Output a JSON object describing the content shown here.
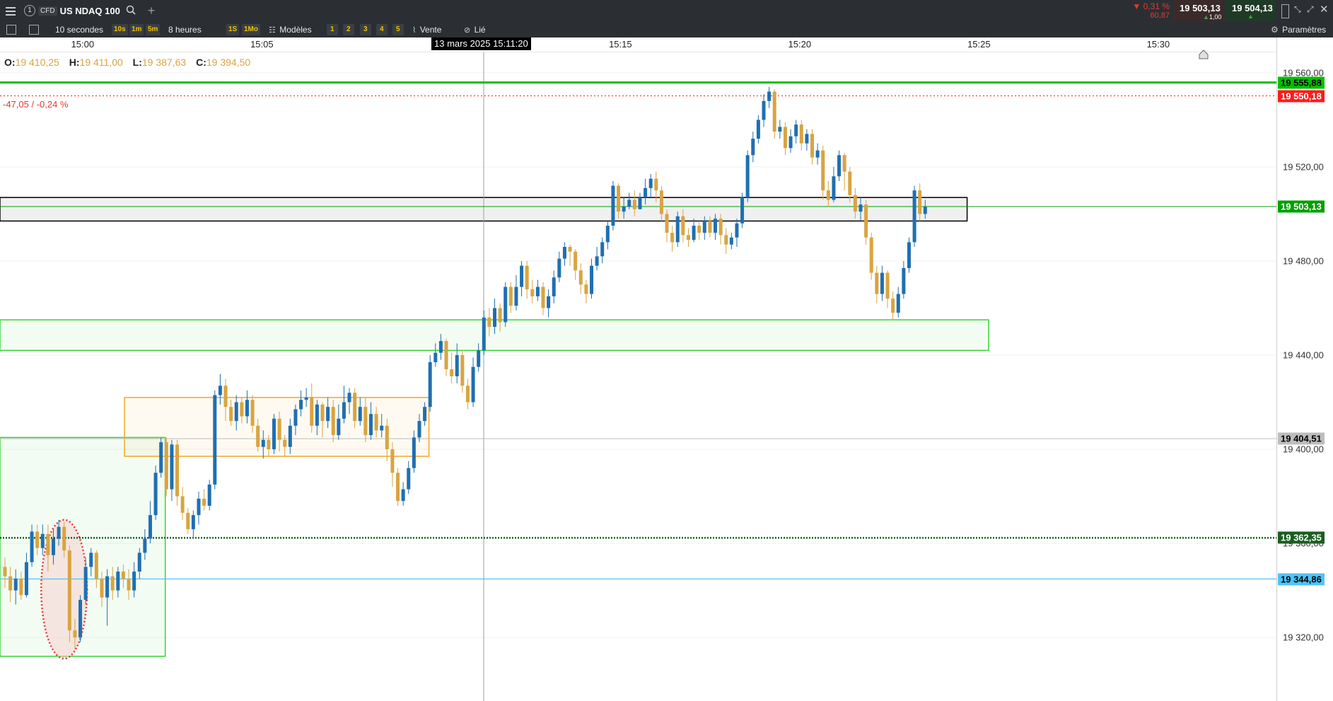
{
  "topbar": {
    "menu_icon": "menu-icon",
    "instrument_badge": "1",
    "instrument_type": "CFD",
    "instrument_name": "US NDAQ 100",
    "search_icon": "search-icon",
    "add_icon": "plus-icon",
    "change_pct": "▼ 0,31 %",
    "change_abs": "60,87",
    "bid": "19 503,13",
    "spread": "1,00",
    "ask": "19 504,13",
    "colors": {
      "down": "#e53935",
      "up": "#43a047",
      "bg": "#2b2f33"
    }
  },
  "toolbar": {
    "interval": "10 secondes",
    "quick_intervals": [
      "10s",
      "1m",
      "5m"
    ],
    "range": "8 heures",
    "quick_ranges": [
      "1S",
      "1Mo"
    ],
    "templates_label": "Modèles",
    "slots": [
      "1",
      "2",
      "3",
      "4",
      "5"
    ],
    "sell_label": "Vente",
    "linked_label": "Lié",
    "settings_label": "Paramètres"
  },
  "ohlc": {
    "o_label": "O:",
    "o": "19 410,25",
    "h_label": "H:",
    "h": "19 411,00",
    "l_label": "L:",
    "l": "19 387,63",
    "c_label": "C:",
    "c": "19 394,50"
  },
  "cursor_time": "13 mars 2025 15:11:20",
  "change_annotation": "-47,05 / -0,24 %",
  "chart_data": {
    "type": "candlestick",
    "x_ticks": [
      "15:00",
      "15:05",
      "15:15",
      "15:20",
      "15:25",
      "15:30"
    ],
    "y_ticks": [
      "19 560,00",
      "19 520,00",
      "19 480,00",
      "19 440,00",
      "19 400,00",
      "19 360,00",
      "19 320,00"
    ],
    "ylim": [
      19293.0,
      19575.0
    ],
    "price_labels": [
      {
        "value": "19 555,88",
        "color": "#00c000"
      },
      {
        "value": "19 550,18",
        "color": "#ff1a1a"
      },
      {
        "value": "19 503,13",
        "color": "#00a000"
      },
      {
        "value": "19 404,51",
        "color": "#bdbdbd"
      },
      {
        "value": "19 362,35",
        "color": "#1b5e20"
      },
      {
        "value": "19 344,86",
        "color": "#4fc3f7"
      }
    ],
    "candles": [
      [
        19350,
        19346,
        19354,
        19341
      ],
      [
        19346,
        19340,
        19350,
        19335
      ],
      [
        19340,
        19345,
        19349,
        19334
      ],
      [
        19345,
        19338,
        19348,
        19336
      ],
      [
        19338,
        19352,
        19356,
        19337
      ],
      [
        19352,
        19365,
        19368,
        19350
      ],
      [
        19365,
        19358,
        19368,
        19355
      ],
      [
        19358,
        19364,
        19368,
        19355
      ],
      [
        19364,
        19355,
        19368,
        19348
      ],
      [
        19355,
        19362,
        19366,
        19351
      ],
      [
        19362,
        19367,
        19370,
        19359
      ],
      [
        19367,
        19357,
        19369,
        19354
      ],
      [
        19357,
        19323,
        19359,
        19318
      ],
      [
        19323,
        19320,
        19328,
        19315
      ],
      [
        19320,
        19336,
        19338,
        19318
      ],
      [
        19336,
        19350,
        19354,
        19334
      ],
      [
        19350,
        19356,
        19358,
        19346
      ],
      [
        19356,
        19345,
        19357,
        19341
      ],
      [
        19345,
        19337,
        19348,
        19333
      ],
      [
        19337,
        19346,
        19349,
        19325
      ],
      [
        19346,
        19340,
        19350,
        19336
      ],
      [
        19340,
        19348,
        19350,
        19337
      ],
      [
        19348,
        19345,
        19351,
        19341
      ],
      [
        19345,
        19340,
        19349,
        19336
      ],
      [
        19340,
        19348,
        19352,
        19337
      ],
      [
        19348,
        19356,
        19358,
        19345
      ],
      [
        19356,
        19362,
        19366,
        19353
      ],
      [
        19362,
        19372,
        19378,
        19360
      ],
      [
        19372,
        19390,
        19393,
        19370
      ],
      [
        19390,
        19403,
        19405,
        19388
      ],
      [
        19403,
        19383,
        19405,
        19380
      ],
      [
        19383,
        19402,
        19404,
        19378
      ],
      [
        19402,
        19380,
        19404,
        19376
      ],
      [
        19380,
        19373,
        19384,
        19370
      ],
      [
        19373,
        19366,
        19375,
        19364
      ],
      [
        19366,
        19372,
        19374,
        19362
      ],
      [
        19372,
        19379,
        19382,
        19368
      ],
      [
        19379,
        19376,
        19383,
        19374
      ],
      [
        19376,
        19385,
        19387,
        19374
      ],
      [
        19385,
        19423,
        19425,
        19383
      ],
      [
        19423,
        19427,
        19432,
        19419
      ],
      [
        19427,
        19418,
        19430,
        19412
      ],
      [
        19418,
        19412,
        19421,
        19410
      ],
      [
        19412,
        19420,
        19423,
        19408
      ],
      [
        19420,
        19414,
        19422,
        19411
      ],
      [
        19414,
        19421,
        19425,
        19411
      ],
      [
        19421,
        19410,
        19423,
        19407
      ],
      [
        19410,
        19401,
        19413,
        19399
      ],
      [
        19401,
        19404,
        19408,
        19396
      ],
      [
        19404,
        19400,
        19406,
        19397
      ],
      [
        19400,
        19413,
        19415,
        19398
      ],
      [
        19413,
        19404,
        19416,
        19399
      ],
      [
        19404,
        19401,
        19406,
        19397
      ],
      [
        19401,
        19410,
        19413,
        19398
      ],
      [
        19410,
        19417,
        19419,
        19406
      ],
      [
        19417,
        19421,
        19425,
        19414
      ],
      [
        19421,
        19422,
        19426,
        19418
      ],
      [
        19422,
        19410,
        19428,
        19407
      ],
      [
        19410,
        19419,
        19421,
        19406
      ],
      [
        19419,
        19412,
        19420,
        19405
      ],
      [
        19412,
        19418,
        19422,
        19409
      ],
      [
        19418,
        19406,
        19421,
        19403
      ],
      [
        19406,
        19413,
        19419,
        19404
      ],
      [
        19413,
        19420,
        19427,
        19411
      ],
      [
        19420,
        19424,
        19426,
        19415
      ],
      [
        19424,
        19412,
        19426,
        19409
      ],
      [
        19412,
        19418,
        19422,
        19410
      ],
      [
        19418,
        19406,
        19422,
        19403
      ],
      [
        19406,
        19415,
        19420,
        19404
      ],
      [
        19415,
        19408,
        19418,
        19405
      ],
      [
        19408,
        19410,
        19415,
        19405
      ],
      [
        19410,
        19400,
        19413,
        19395
      ],
      [
        19400,
        19390,
        19403,
        19384
      ],
      [
        19390,
        19378,
        19392,
        19376
      ],
      [
        19378,
        19383,
        19386,
        19376
      ],
      [
        19383,
        19392,
        19395,
        19381
      ],
      [
        19392,
        19405,
        19408,
        19390
      ],
      [
        19405,
        19412,
        19415,
        19403
      ],
      [
        19412,
        19418,
        19420,
        19410
      ],
      [
        19418,
        19437,
        19440,
        19416
      ],
      [
        19437,
        19441,
        19445,
        19435
      ],
      [
        19441,
        19446,
        19449,
        19438
      ],
      [
        19446,
        19434,
        19447,
        19431
      ],
      [
        19434,
        19431,
        19441,
        19428
      ],
      [
        19431,
        19440,
        19445,
        19428
      ],
      [
        19440,
        19427,
        19442,
        19424
      ],
      [
        19427,
        19420,
        19430,
        19417
      ],
      [
        19420,
        19435,
        19439,
        19418
      ],
      [
        19435,
        19442,
        19445,
        19433
      ],
      [
        19442,
        19456,
        19459,
        19440
      ],
      [
        19456,
        19452,
        19460,
        19448
      ],
      [
        19452,
        19460,
        19464,
        19449
      ],
      [
        19460,
        19454,
        19462,
        19450
      ],
      [
        19454,
        19469,
        19471,
        19452
      ],
      [
        19469,
        19461,
        19471,
        19458
      ],
      [
        19461,
        19469,
        19474,
        19459
      ],
      [
        19469,
        19478,
        19480,
        19465
      ],
      [
        19478,
        19468,
        19480,
        19464
      ],
      [
        19468,
        19465,
        19472,
        19462
      ],
      [
        19465,
        19469,
        19472,
        19463
      ],
      [
        19469,
        19460,
        19471,
        19457
      ],
      [
        19460,
        19465,
        19468,
        19456
      ],
      [
        19465,
        19473,
        19476,
        19462
      ],
      [
        19473,
        19481,
        19484,
        19471
      ],
      [
        19481,
        19486,
        19488,
        19478
      ],
      [
        19486,
        19484,
        19487,
        19478
      ],
      [
        19484,
        19476,
        19485,
        19472
      ],
      [
        19476,
        19470,
        19479,
        19466
      ],
      [
        19470,
        19466,
        19472,
        19462
      ],
      [
        19466,
        19478,
        19481,
        19464
      ],
      [
        19478,
        19482,
        19486,
        19476
      ],
      [
        19482,
        19488,
        19490,
        19479
      ],
      [
        19488,
        19495,
        19497,
        19485
      ],
      [
        19495,
        19512,
        19514,
        19493
      ],
      [
        19512,
        19501,
        19513,
        19498
      ],
      [
        19501,
        19503,
        19507,
        19498
      ],
      [
        19503,
        19506,
        19509,
        19502
      ],
      [
        19506,
        19502,
        19510,
        19499
      ],
      [
        19502,
        19507,
        19509,
        19503
      ],
      [
        19507,
        19511,
        19515,
        19504
      ],
      [
        19511,
        19515,
        19517,
        19507
      ],
      [
        19515,
        19510,
        19518,
        19505
      ],
      [
        19510,
        19500,
        19512,
        19497
      ],
      [
        19500,
        19492,
        19502,
        19488
      ],
      [
        19492,
        19488,
        19495,
        19484
      ],
      [
        19488,
        19499,
        19501,
        19486
      ],
      [
        19499,
        19491,
        19502,
        19488
      ],
      [
        19491,
        19489,
        19494,
        19486
      ],
      [
        19489,
        19495,
        19498,
        19488
      ],
      [
        19495,
        19492,
        19497,
        19489
      ],
      [
        19492,
        19497,
        19499,
        19489
      ],
      [
        19497,
        19492,
        19499,
        19490
      ],
      [
        19492,
        19498,
        19500,
        19489
      ],
      [
        19498,
        19491,
        19500,
        19487
      ],
      [
        19491,
        19487,
        19494,
        19483
      ],
      [
        19487,
        19490,
        19492,
        19485
      ],
      [
        19490,
        19496,
        19498,
        19486
      ],
      [
        19496,
        19507,
        19509,
        19494
      ],
      [
        19507,
        19525,
        19527,
        19505
      ],
      [
        19525,
        19532,
        19535,
        19522
      ],
      [
        19532,
        19540,
        19542,
        19530
      ],
      [
        19540,
        19548,
        19551,
        19537
      ],
      [
        19548,
        19552,
        19554,
        19545
      ],
      [
        19552,
        19535,
        19553,
        19532
      ],
      [
        19535,
        19537,
        19540,
        19532
      ],
      [
        19537,
        19528,
        19539,
        19525
      ],
      [
        19528,
        19533,
        19536,
        19526
      ],
      [
        19533,
        19538,
        19540,
        19530
      ],
      [
        19538,
        19530,
        19540,
        19527
      ],
      [
        19530,
        19534,
        19536,
        19527
      ],
      [
        19534,
        19524,
        19536,
        19521
      ],
      [
        19524,
        19527,
        19530,
        19521
      ],
      [
        19527,
        19510,
        19529,
        19506
      ],
      [
        19510,
        19506,
        19514,
        19503
      ],
      [
        19506,
        19516,
        19520,
        19505
      ],
      [
        19516,
        19525,
        19527,
        19514
      ],
      [
        19525,
        19518,
        19526,
        19510
      ],
      [
        19518,
        19508,
        19520,
        19505
      ],
      [
        19508,
        19501,
        19511,
        19498
      ],
      [
        19501,
        19504,
        19507,
        19497
      ],
      [
        19504,
        19490,
        19506,
        19487
      ],
      [
        19490,
        19475,
        19492,
        19472
      ],
      [
        19475,
        19466,
        19478,
        19462
      ],
      [
        19466,
        19475,
        19478,
        19463
      ],
      [
        19475,
        19464,
        19476,
        19460
      ],
      [
        19464,
        19458,
        19467,
        19455
      ],
      [
        19458,
        19466,
        19469,
        19456
      ],
      [
        19466,
        19477,
        19480,
        19464
      ],
      [
        19477,
        19488,
        19490,
        19475
      ],
      [
        19488,
        19510,
        19512,
        19486
      ],
      [
        19510,
        19500,
        19513,
        19497
      ],
      [
        19500,
        19503,
        19506,
        19498
      ]
    ],
    "candle_colors": {
      "up": "#1f6fb2",
      "down": "#d9a441"
    },
    "overlays": [
      {
        "kind": "zone",
        "color": "#35d435",
        "y": [
          19312.0,
          19405.0
        ],
        "x": [
          0,
          29
        ]
      },
      {
        "kind": "zone",
        "color": "#f5a623",
        "y": [
          19397.0,
          19422.0
        ],
        "x": [
          23,
          78
        ]
      },
      {
        "kind": "zone",
        "color": "#35d435",
        "y": [
          19442.0,
          19455.0
        ],
        "x": [
          0,
          182
        ]
      },
      {
        "kind": "zone",
        "color": "#000000",
        "y": [
          19497.0,
          19507.0
        ],
        "x": [
          0,
          178
        ]
      },
      {
        "kind": "ellipse",
        "color": "#e53935",
        "x": [
          7,
          15
        ],
        "y": [
          19311.0,
          19370.0
        ]
      }
    ]
  }
}
